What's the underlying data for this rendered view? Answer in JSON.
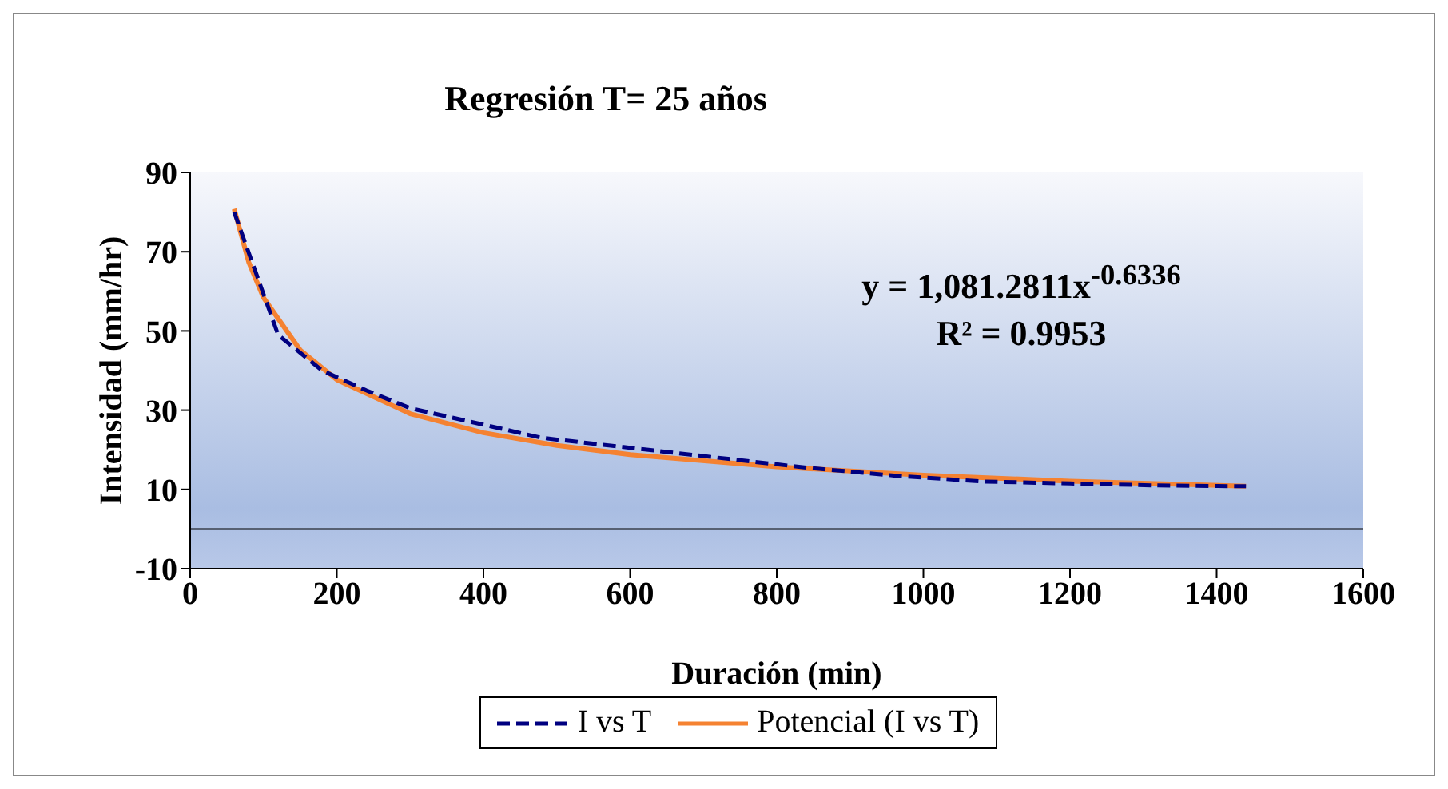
{
  "chart_data": {
    "type": "line",
    "title": "Regresión T= 25 años",
    "xlabel": "Duración (min)",
    "ylabel": "Intensidad (mm/hr)",
    "xlim": [
      0,
      1600
    ],
    "xticks": [
      0,
      200,
      400,
      600,
      800,
      1000,
      1200,
      1400,
      1600
    ],
    "ylim": [
      -10,
      90
    ],
    "yticks": [
      -10,
      10,
      30,
      50,
      70,
      90
    ],
    "grid": false,
    "legend": "bottom",
    "marker": "none",
    "ref_lines": [
      {
        "axis": "y",
        "value": 0,
        "color": "#000000"
      }
    ],
    "annotations": [
      "y = 1,081.2811x$^{-0.6336}$",
      "R² = 0.9953"
    ],
    "series": [
      {
        "name": "I vs T",
        "color": "#000080",
        "line_style": "dashed",
        "x": [
          60,
          120,
          180,
          240,
          300,
          360,
          480,
          600,
          720,
          840,
          960,
          1080,
          1200,
          1320,
          1440
        ],
        "values": [
          80,
          49,
          40,
          35,
          30.5,
          28,
          23,
          20.5,
          18,
          15.5,
          13.5,
          12,
          11.5,
          11,
          10.8
        ]
      },
      {
        "name": "Potencial (I vs T)",
        "color": "#f58231",
        "line_style": "solid",
        "x": [
          60,
          80,
          100,
          150,
          200,
          300,
          400,
          500,
          600,
          800,
          1000,
          1200,
          1440
        ],
        "values": [
          80.8,
          67.3,
          58.4,
          45.2,
          37.7,
          29.1,
          24.3,
          21.1,
          18.8,
          15.7,
          13.6,
          12.1,
          10.8
        ]
      }
    ]
  }
}
